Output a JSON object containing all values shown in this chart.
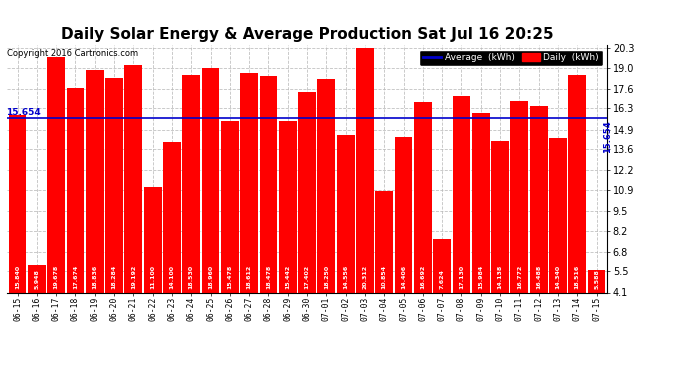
{
  "title": "Daily Solar Energy & Average Production Sat Jul 16 20:25",
  "copyright": "Copyright 2016 Cartronics.com",
  "average_value": 15.654,
  "average_label": "15.654",
  "categories": [
    "06-15",
    "06-16",
    "06-17",
    "06-18",
    "06-19",
    "06-20",
    "06-21",
    "06-22",
    "06-23",
    "06-24",
    "06-25",
    "06-26",
    "06-27",
    "06-28",
    "06-29",
    "06-30",
    "07-01",
    "07-02",
    "07-03",
    "07-04",
    "07-05",
    "07-06",
    "07-07",
    "07-08",
    "07-09",
    "07-10",
    "07-11",
    "07-12",
    "07-13",
    "07-14",
    "07-15"
  ],
  "values": [
    15.84,
    5.948,
    19.678,
    17.674,
    18.836,
    18.284,
    19.192,
    11.1,
    14.1,
    18.53,
    18.96,
    15.478,
    18.612,
    18.478,
    15.442,
    17.402,
    18.25,
    14.556,
    20.312,
    10.854,
    14.406,
    16.692,
    7.624,
    17.13,
    15.984,
    14.138,
    16.772,
    16.488,
    14.34,
    18.516,
    5.588
  ],
  "bar_color": "#ff0000",
  "avg_line_color": "#0000cc",
  "ylim_min": 4.1,
  "ylim_max": 20.5,
  "yticks": [
    4.1,
    5.5,
    6.8,
    8.2,
    9.5,
    10.9,
    12.2,
    13.6,
    14.9,
    16.3,
    17.6,
    19.0,
    20.3
  ],
  "background_color": "#ffffff",
  "plot_bg_color": "#ffffff",
  "grid_color": "#bbbbbb",
  "title_fontsize": 11,
  "legend_avg_color": "#0000cc",
  "legend_daily_color": "#ff0000",
  "legend_avg_label": "Average  (kWh)",
  "legend_daily_label": "Daily  (kWh)"
}
